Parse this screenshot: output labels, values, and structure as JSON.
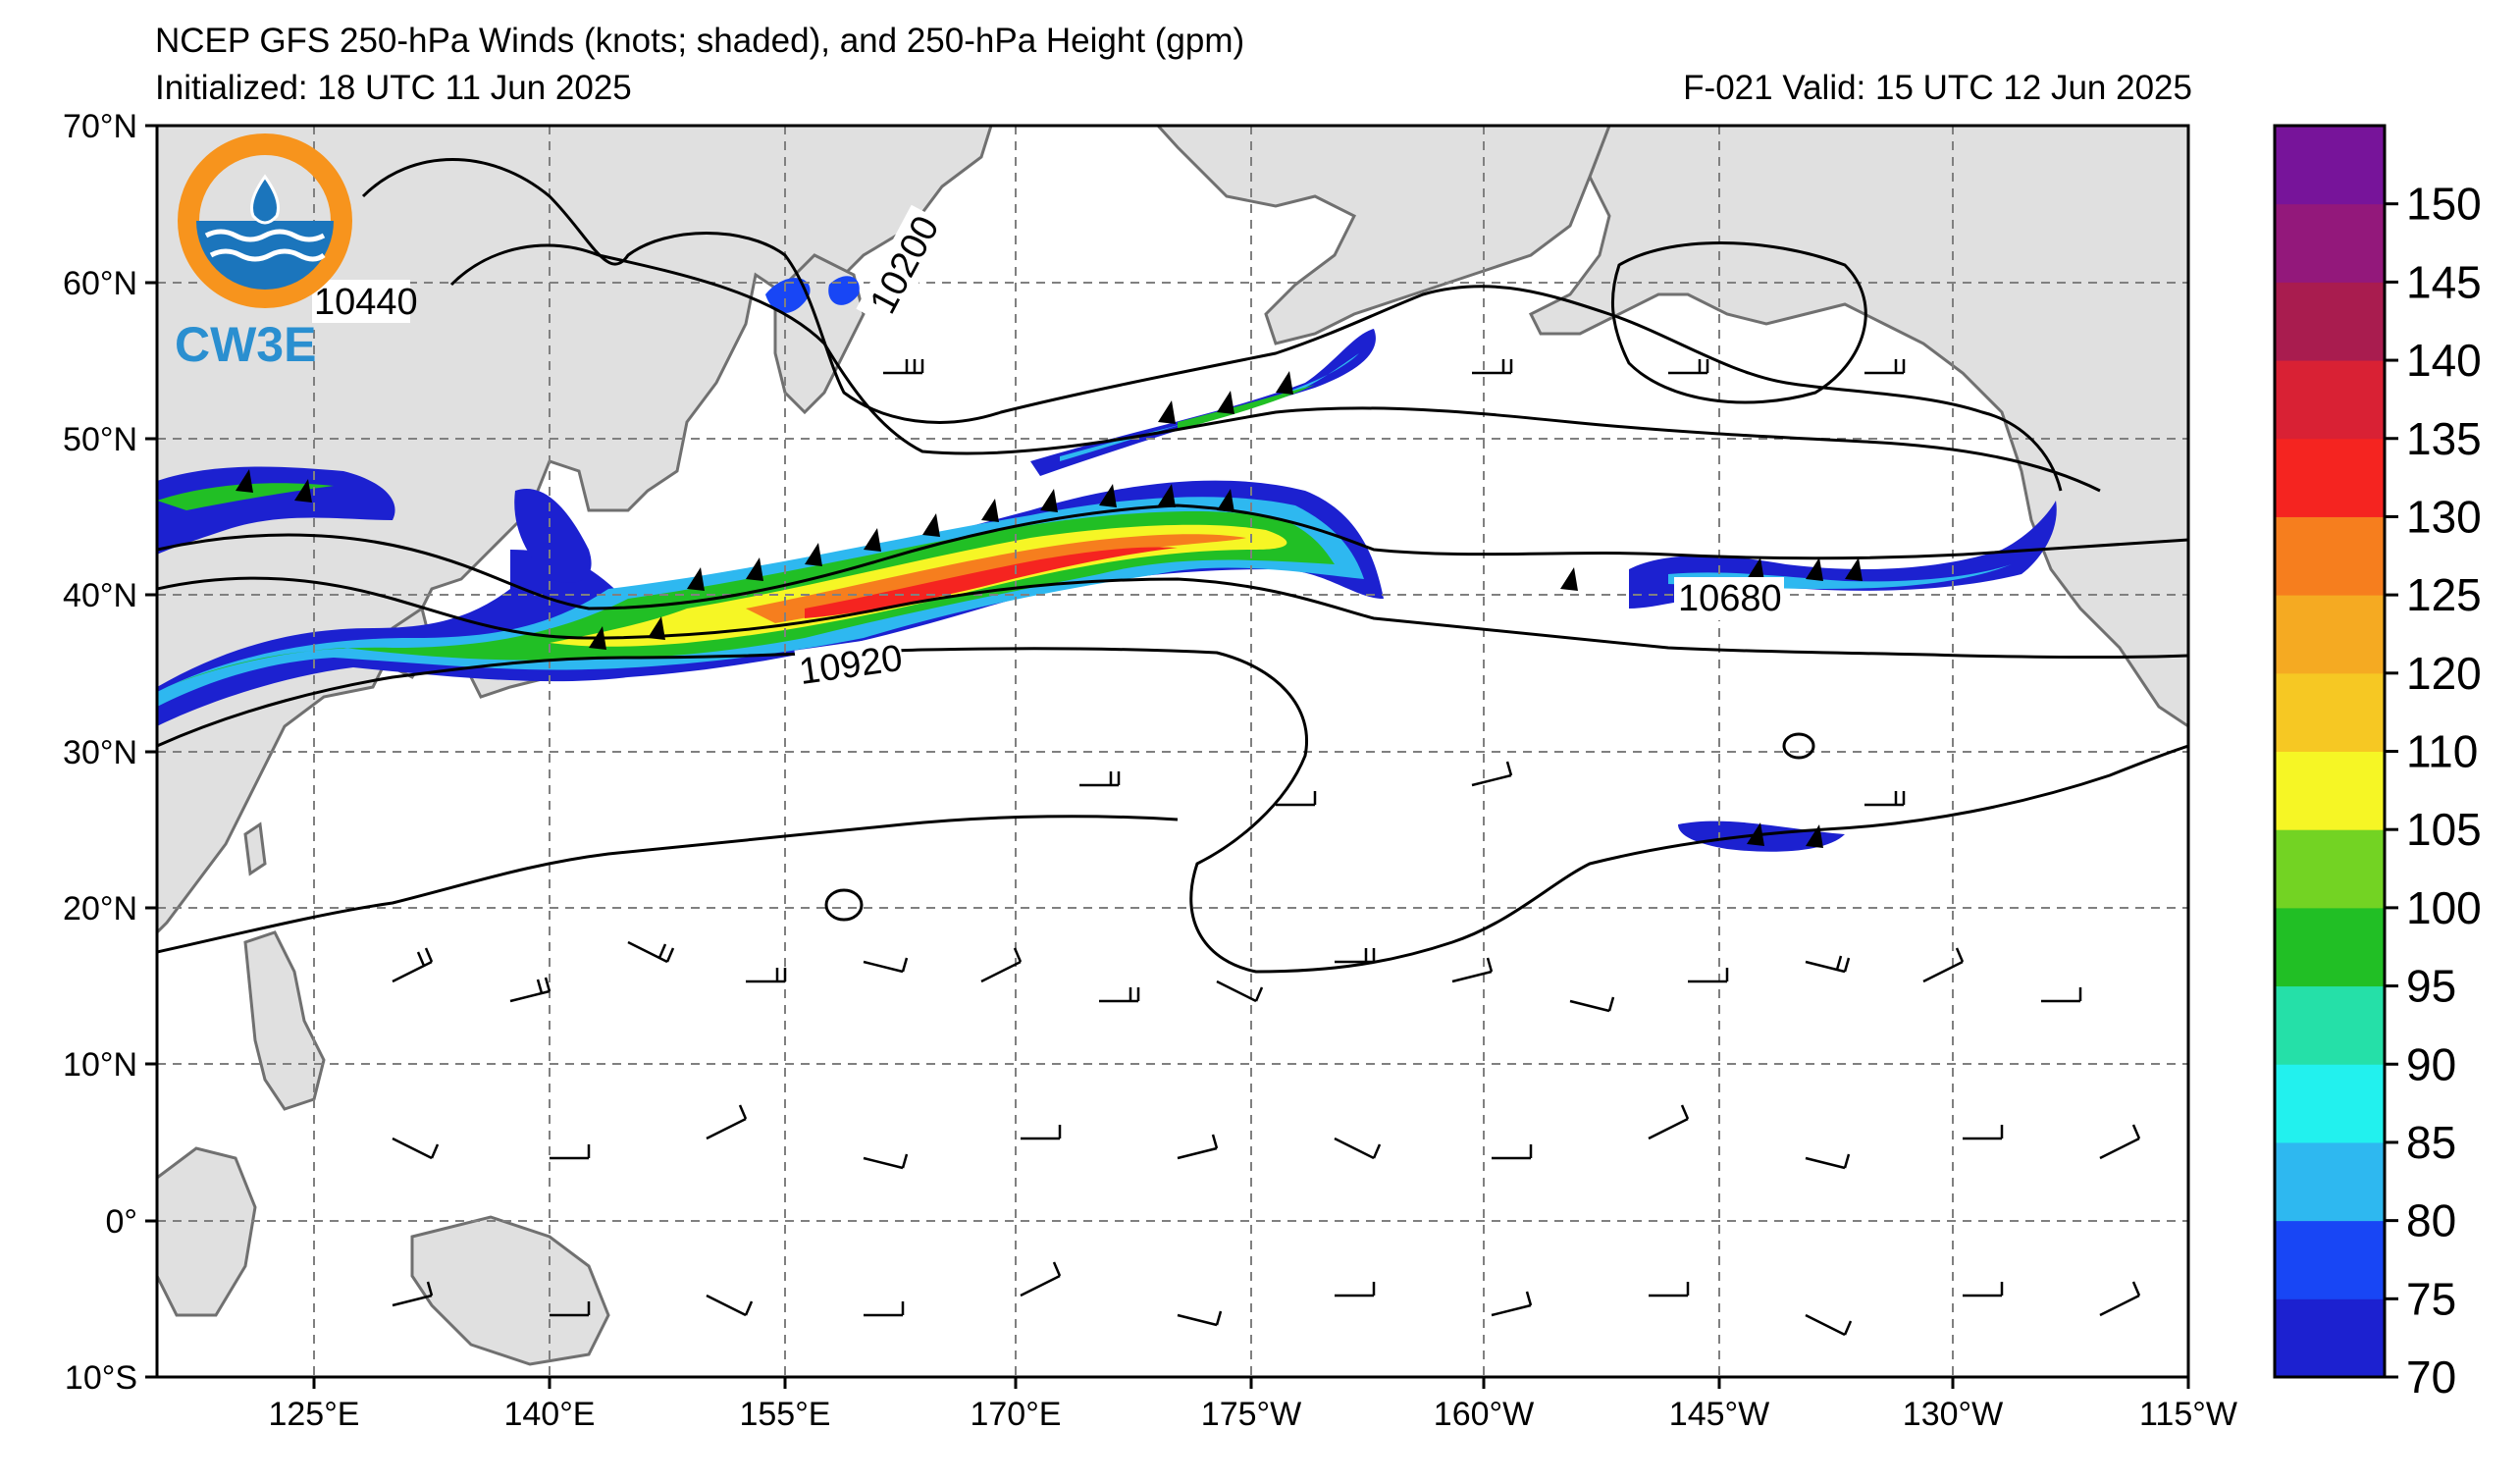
{
  "header": {
    "title": "NCEP GFS 250-hPa Winds (knots; shaded), and 250-hPa Height (gpm)",
    "initialized": "Initialized: 18 UTC 11 Jun 2025",
    "valid": "F-021  Valid: 15 UTC 12 Jun 2025"
  },
  "logo": {
    "text": "CW3E",
    "ring_color": "#f7941d",
    "wave_color": "#1b75bc"
  },
  "map": {
    "lat_range": [
      -10,
      70
    ],
    "lon_range_east": [
      110,
      245
    ],
    "lat_labels": [
      "70°N",
      "60°N",
      "50°N",
      "40°N",
      "30°N",
      "20°N",
      "10°N",
      "0°",
      "10°S"
    ],
    "lon_labels": [
      "125°E",
      "140°E",
      "155°E",
      "170°E",
      "175°W",
      "160°W",
      "145°W",
      "130°W",
      "115°W"
    ],
    "land_color": "#e0e0e0",
    "coast_color": "#707070",
    "grid_color": "#808080"
  },
  "contour_labels": [
    "10440",
    "10200",
    "10920",
    "10680"
  ],
  "colorbar": {
    "unit": "knots",
    "levels": [
      70,
      75,
      80,
      85,
      90,
      95,
      100,
      105,
      110,
      120,
      125,
      130,
      135,
      140,
      145,
      150
    ],
    "labels": [
      "70",
      "75",
      "80",
      "85",
      "90",
      "95",
      "100",
      "105",
      "110",
      "120",
      "125",
      "130",
      "135",
      "140",
      "145",
      "150"
    ],
    "colors": [
      "#1c21d0",
      "#1846f5",
      "#2eb8f0",
      "#22f1ee",
      "#25e0a8",
      "#21bf25",
      "#73d323",
      "#f6f625",
      "#f6c823",
      "#f5aa22",
      "#f67e1e",
      "#f52420",
      "#d92134",
      "#a91c4f",
      "#93187b",
      "#77149a"
    ]
  }
}
